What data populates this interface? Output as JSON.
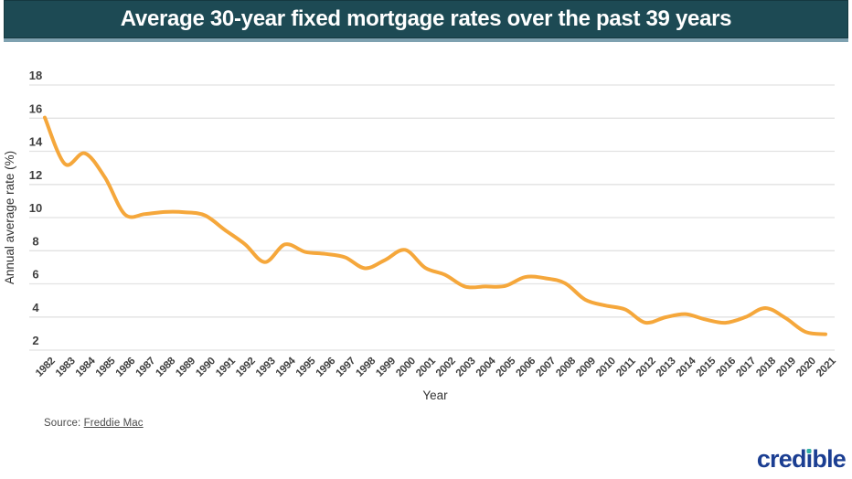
{
  "banner": {
    "title": "Average 30-year fixed mortgage rates over the past 39 years"
  },
  "source": {
    "prefix": "Source:",
    "link_text": "Freddie Mac"
  },
  "logo": {
    "text": "credible",
    "pre": "cred",
    "dotless_i": "ı",
    "post": "ble"
  },
  "colors": {
    "banner_bg": "#1d4a54",
    "banner_text": "#ffffff",
    "banner_shadow": "#7ea1b0",
    "line": "#f5a73b",
    "grid": "#e2e2e2",
    "tick_text": "#3f3f3f",
    "axis_title": "#333333",
    "logo_navy": "#1b3e92",
    "logo_dot_teal": "#2fb0a5"
  },
  "chart_data": {
    "type": "line",
    "title": "Average 30-year fixed mortgage rates over the past 39 years",
    "xlabel": "Year",
    "ylabel": "Annual average rate (%)",
    "x": [
      1982,
      1983,
      1984,
      1985,
      1986,
      1987,
      1988,
      1989,
      1990,
      1991,
      1992,
      1993,
      1994,
      1995,
      1996,
      1997,
      1998,
      1999,
      2000,
      2001,
      2002,
      2003,
      2004,
      2005,
      2006,
      2007,
      2008,
      2009,
      2010,
      2011,
      2012,
      2013,
      2014,
      2015,
      2016,
      2017,
      2018,
      2019,
      2020,
      2021
    ],
    "series": [
      {
        "name": "30-year fixed mortgage rate",
        "values": [
          16.04,
          13.24,
          13.88,
          12.43,
          10.19,
          10.21,
          10.34,
          10.32,
          10.13,
          9.25,
          8.39,
          7.31,
          8.38,
          7.93,
          7.81,
          7.6,
          6.94,
          7.44,
          8.05,
          6.97,
          6.54,
          5.83,
          5.84,
          5.87,
          6.41,
          6.34,
          6.03,
          5.04,
          4.69,
          4.45,
          3.66,
          3.98,
          4.17,
          3.85,
          3.65,
          3.99,
          4.54,
          3.94,
          3.1,
          2.96
        ]
      }
    ],
    "ylim": [
      2,
      18
    ],
    "yticks": [
      18,
      16,
      14,
      12,
      10,
      8,
      6,
      4,
      2
    ],
    "grid": true,
    "legend": false,
    "smooth": true,
    "line_color": "#f5a73b"
  }
}
